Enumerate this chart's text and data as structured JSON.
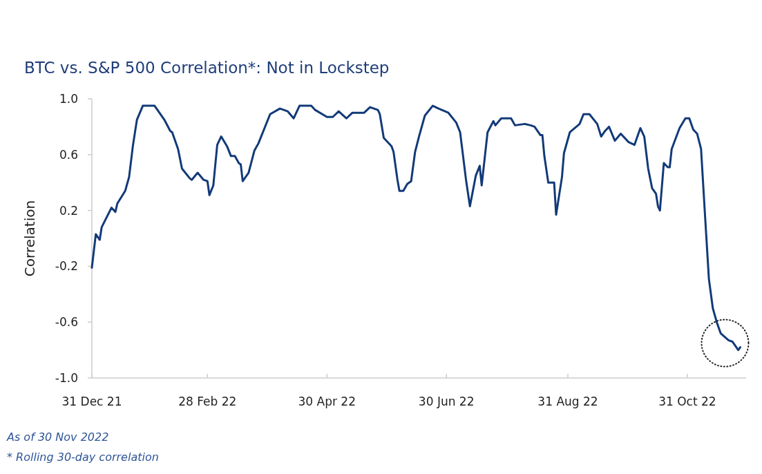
{
  "chart_data": {
    "type": "line",
    "title": "BTC vs. S&P 500 Correlation*: Not in Lockstep",
    "ylabel": "Correlation",
    "annotations": [
      "As of 30 Nov 2022",
      "* Rolling 30-day correlation"
    ],
    "xlim": [
      "2021-12-31",
      "2022-11-30"
    ],
    "xticks": [
      {
        "value": "2021-12-31",
        "label": "31 Dec 21"
      },
      {
        "value": "2022-02-28",
        "label": "28 Feb 22"
      },
      {
        "value": "2022-04-30",
        "label": "30 Apr 22"
      },
      {
        "value": "2022-06-30",
        "label": "30 Jun 22"
      },
      {
        "value": "2022-08-31",
        "label": "31 Aug 22"
      },
      {
        "value": "2022-10-31",
        "label": "31 Oct 22"
      }
    ],
    "ylim": [
      -1,
      1
    ],
    "yticks": [
      {
        "value": -1,
        "label": "-1.0"
      },
      {
        "value": -0.6,
        "label": "-0.6"
      },
      {
        "value": -0.2,
        "label": "-0.2"
      },
      {
        "value": 0.2,
        "label": "0.2"
      },
      {
        "value": 0.6,
        "label": "0.6"
      },
      {
        "value": 1,
        "label": "1.0"
      }
    ],
    "grid": false,
    "marker": "none",
    "line_style": "solid",
    "x": [
      "2021-12-31",
      "2022-01-02",
      "2022-01-04",
      "2022-01-05",
      "2022-01-10",
      "2022-01-12",
      "2022-01-13",
      "2022-01-17",
      "2022-01-19",
      "2022-01-21",
      "2022-01-23",
      "2022-01-26",
      "2022-02-01",
      "2022-02-03",
      "2022-02-06",
      "2022-02-09",
      "2022-02-10",
      "2022-02-13",
      "2022-02-15",
      "2022-02-19",
      "2022-02-20",
      "2022-02-23",
      "2022-02-26",
      "2022-02-28",
      "2022-03-01",
      "2022-03-03",
      "2022-03-05",
      "2022-03-07",
      "2022-03-10",
      "2022-03-12",
      "2022-03-14",
      "2022-03-16",
      "2022-03-17",
      "2022-03-18",
      "2022-03-21",
      "2022-03-24",
      "2022-03-26",
      "2022-04-01",
      "2022-04-06",
      "2022-04-10",
      "2022-04-13",
      "2022-04-15",
      "2022-04-16",
      "2022-04-22",
      "2022-04-24",
      "2022-04-30",
      "2022-05-03",
      "2022-05-06",
      "2022-05-10",
      "2022-05-13",
      "2022-05-19",
      "2022-05-22",
      "2022-05-26",
      "2022-05-27",
      "2022-05-29",
      "2022-06-02",
      "2022-06-03",
      "2022-06-05",
      "2022-06-06",
      "2022-06-08",
      "2022-06-10",
      "2022-06-12",
      "2022-06-14",
      "2022-06-16",
      "2022-06-19",
      "2022-06-23",
      "2022-06-26",
      "2022-07-01",
      "2022-07-05",
      "2022-07-07",
      "2022-07-10",
      "2022-07-12",
      "2022-07-15",
      "2022-07-17",
      "2022-07-18",
      "2022-07-21",
      "2022-07-24",
      "2022-07-25",
      "2022-07-28",
      "2022-08-02",
      "2022-08-04",
      "2022-08-09",
      "2022-08-12",
      "2022-08-14",
      "2022-08-17",
      "2022-08-18",
      "2022-08-19",
      "2022-08-21",
      "2022-08-24",
      "2022-08-25",
      "2022-08-28",
      "2022-08-29",
      "2022-09-01",
      "2022-09-06",
      "2022-09-08",
      "2022-09-11",
      "2022-09-15",
      "2022-09-17",
      "2022-09-19",
      "2022-09-21",
      "2022-09-24",
      "2022-09-27",
      "2022-10-01",
      "2022-10-04",
      "2022-10-07",
      "2022-10-09",
      "2022-10-11",
      "2022-10-13",
      "2022-10-15",
      "2022-10-16",
      "2022-10-17",
      "2022-10-19",
      "2022-10-21",
      "2022-10-22",
      "2022-10-23",
      "2022-10-27",
      "2022-10-30",
      "2022-11-01",
      "2022-11-03",
      "2022-11-05",
      "2022-11-07",
      "2022-11-09",
      "2022-11-11",
      "2022-11-13",
      "2022-11-15",
      "2022-11-17",
      "2022-11-21",
      "2022-11-23",
      "2022-11-26",
      "2022-11-27"
    ],
    "series": [
      {
        "color": "#123a78",
        "values": [
          -0.21,
          0.03,
          -0.01,
          0.08,
          0.22,
          0.19,
          0.25,
          0.34,
          0.44,
          0.67,
          0.85,
          0.95,
          0.95,
          0.91,
          0.85,
          0.77,
          0.76,
          0.64,
          0.5,
          0.43,
          0.42,
          0.47,
          0.42,
          0.41,
          0.31,
          0.38,
          0.67,
          0.73,
          0.66,
          0.59,
          0.59,
          0.54,
          0.53,
          0.41,
          0.47,
          0.63,
          0.68,
          0.89,
          0.93,
          0.91,
          0.86,
          0.92,
          0.95,
          0.95,
          0.92,
          0.87,
          0.87,
          0.91,
          0.86,
          0.9,
          0.9,
          0.94,
          0.92,
          0.89,
          0.72,
          0.66,
          0.62,
          0.42,
          0.34,
          0.34,
          0.39,
          0.41,
          0.62,
          0.73,
          0.88,
          0.95,
          0.93,
          0.9,
          0.83,
          0.76,
          0.42,
          0.23,
          0.45,
          0.52,
          0.38,
          0.76,
          0.84,
          0.81,
          0.86,
          0.86,
          0.81,
          0.82,
          0.81,
          0.8,
          0.74,
          0.74,
          0.59,
          0.4,
          0.4,
          0.17,
          0.44,
          0.61,
          0.76,
          0.82,
          0.89,
          0.89,
          0.82,
          0.73,
          0.77,
          0.8,
          0.7,
          0.75,
          0.69,
          0.67,
          0.79,
          0.73,
          0.5,
          0.36,
          0.32,
          0.23,
          0.2,
          0.54,
          0.51,
          0.51,
          0.64,
          0.79,
          0.86,
          0.86,
          0.78,
          0.75,
          0.64,
          0.17,
          -0.29,
          -0.5,
          -0.6,
          -0.68,
          -0.73,
          -0.74,
          -0.8,
          -0.78
        ]
      }
    ]
  }
}
